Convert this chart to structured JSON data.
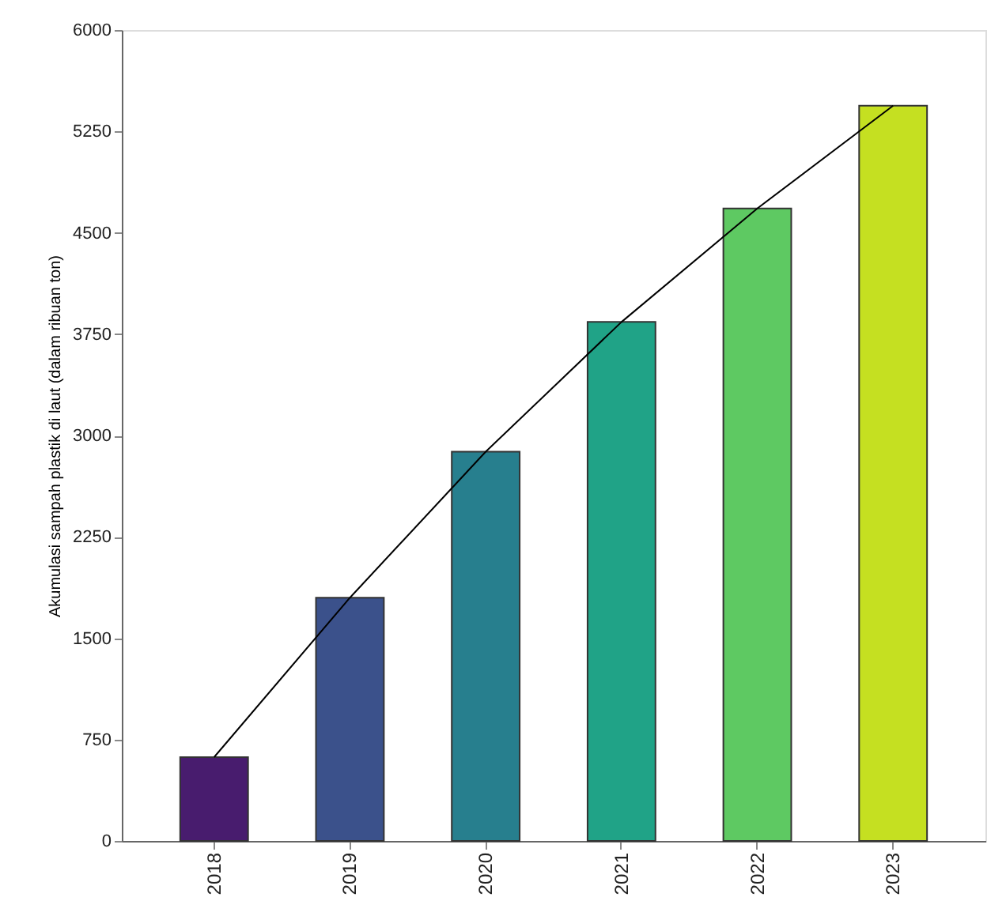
{
  "chart_data": {
    "type": "bar",
    "ylabel": "Akumulasi sampah plastik di laut (dalam ribuan ton)",
    "categories": [
      "2018",
      "2019",
      "2020",
      "2021",
      "2022",
      "2023"
    ],
    "series": [
      {
        "colors": [
          "#481c6e",
          "#3b518b",
          "#277f8e",
          "#20a387",
          "#5ec962",
          "#c5e021"
        ],
        "values": [
          620,
          1800,
          2880,
          3840,
          4680,
          5440
        ]
      },
      {
        "type": "line",
        "color": "#000000",
        "values": [
          620,
          1800,
          2880,
          3840,
          4680,
          5440
        ]
      }
    ],
    "ylim": [
      0,
      6000
    ],
    "yticks": [
      0,
      750,
      1500,
      2250,
      3000,
      3750,
      4500,
      5250,
      6000
    ],
    "grid": false
  }
}
